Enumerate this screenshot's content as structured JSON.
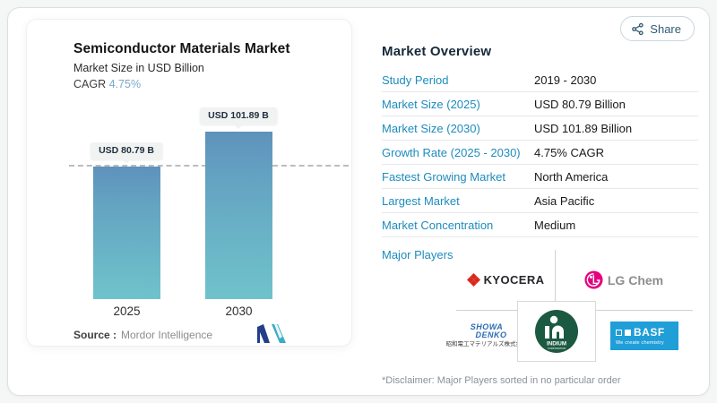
{
  "share": {
    "label": "Share"
  },
  "chart": {
    "title": "Semiconductor Materials Market",
    "subtitle": "Market Size in USD Billion",
    "cagr_label": "CAGR",
    "cagr_value": "4.75%",
    "source_label": "Source :",
    "source_value": "Mordor Intelligence"
  },
  "chart_data": {
    "type": "bar",
    "title": "Semiconductor Materials Market",
    "ylabel": "Market Size in USD Billion",
    "categories": [
      "2025",
      "2030"
    ],
    "values": [
      80.79,
      101.89
    ],
    "labels": [
      "USD 80.79 B",
      "USD 101.89 B"
    ],
    "ylim": [
      0,
      101.89
    ],
    "dashline_value": 80.79,
    "grid": false,
    "legend": "none",
    "bar_gradient_top": "#5e92bc",
    "bar_gradient_bottom": "#6fc3cb"
  },
  "overview": {
    "heading": "Market Overview",
    "rows": [
      {
        "label": "Study Period",
        "value": "2019 - 2030"
      },
      {
        "label": "Market Size (2025)",
        "value": "USD 80.79 Billion"
      },
      {
        "label": "Market Size (2030)",
        "value": "USD 101.89 Billion"
      },
      {
        "label": "Growth Rate (2025 - 2030)",
        "value": "4.75% CAGR"
      },
      {
        "label": "Fastest Growing Market",
        "value": "North America"
      },
      {
        "label": "Largest Market",
        "value": "Asia Pacific"
      },
      {
        "label": "Market Concentration",
        "value": "Medium"
      }
    ],
    "major_players_label": "Major Players",
    "players": [
      {
        "name": "Kyocera",
        "text": "KYOCERA"
      },
      {
        "name": "LG Chem",
        "text": "LG Chem"
      },
      {
        "name": "Showa Denko",
        "line1": "SHOWA",
        "line2": "DENKO",
        "jp": "昭和電工マテリアルズ株式会社"
      },
      {
        "name": "Indium Corporation",
        "text": "INDIUM",
        "subtext": "CORPORATION"
      },
      {
        "name": "BASF",
        "text": "BASF",
        "tagline": "We create chemistry"
      }
    ],
    "disclaimer": "*Disclaimer: Major Players sorted in no particular order"
  },
  "colors": {
    "accent_blue": "#1d8cbd",
    "cagr_blue": "#7ea9c8",
    "heading_navy": "#16293a",
    "kyocera_red": "#da291c",
    "lg_magenta": "#e6007e",
    "showa_blue": "#2d6cb4",
    "basf_blue": "#1f9ed8",
    "indium_green": "#1c5941",
    "mordor_navy": "#243e8b",
    "mordor_teal": "#3aadc7"
  }
}
